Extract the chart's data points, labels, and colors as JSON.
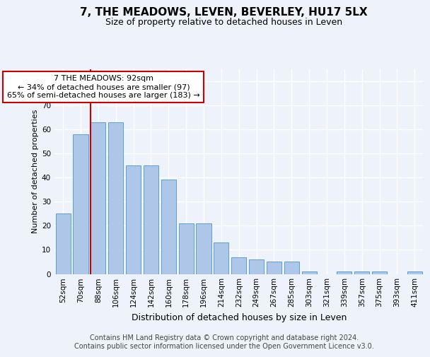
{
  "title": "7, THE MEADOWS, LEVEN, BEVERLEY, HU17 5LX",
  "subtitle": "Size of property relative to detached houses in Leven",
  "xlabel": "Distribution of detached houses by size in Leven",
  "ylabel": "Number of detached properties",
  "categories": [
    "52sqm",
    "70sqm",
    "88sqm",
    "106sqm",
    "124sqm",
    "142sqm",
    "160sqm",
    "178sqm",
    "196sqm",
    "214sqm",
    "232sqm",
    "249sqm",
    "267sqm",
    "285sqm",
    "303sqm",
    "321sqm",
    "339sqm",
    "357sqm",
    "375sqm",
    "393sqm",
    "411sqm"
  ],
  "values": [
    25,
    58,
    63,
    63,
    45,
    45,
    39,
    21,
    21,
    13,
    7,
    6,
    5,
    5,
    1,
    0,
    1,
    1,
    1,
    0,
    1
  ],
  "bar_color": "#aec6e8",
  "bar_edge_color": "#5a9fd4",
  "highlight_line_index": 2,
  "highlight_line_color": "#cc0000",
  "annotation_text": "7 THE MEADOWS: 92sqm\n← 34% of detached houses are smaller (97)\n65% of semi-detached houses are larger (183) →",
  "annotation_box_color": "#ffffff",
  "annotation_box_edge_color": "#cc0000",
  "ylim": [
    0,
    85
  ],
  "yticks": [
    0,
    10,
    20,
    30,
    40,
    50,
    60,
    70,
    80
  ],
  "background_color": "#eef2fb",
  "grid_color": "#ffffff",
  "footer_text": "Contains HM Land Registry data © Crown copyright and database right 2024.\nContains public sector information licensed under the Open Government Licence v3.0.",
  "title_fontsize": 11,
  "subtitle_fontsize": 9,
  "annotation_fontsize": 8,
  "footer_fontsize": 7,
  "ylabel_fontsize": 8,
  "xlabel_fontsize": 9,
  "tick_fontsize": 7.5
}
